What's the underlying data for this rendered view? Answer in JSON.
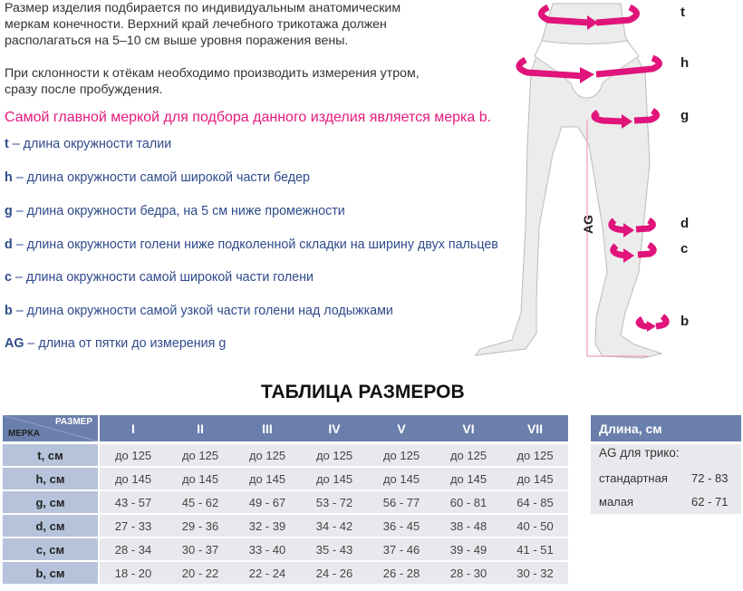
{
  "intro": {
    "p1": "Размер изделия подбирается по индивидуальным анатомическим меркам конечности. Верхний край лечебного трикотажа должен располагаться на 5–10 см выше уровня поражения вены.",
    "p2": "При склонности к отёкам необходимо производить измерения утром, сразу после пробуждения.",
    "highlight": "Самой главной меркой для подбора данного изделия является мерка b."
  },
  "measures": [
    {
      "key": "t",
      "desc": " – длина окружности талии"
    },
    {
      "key": "h",
      "desc": " – длина окружности самой широкой части бедер"
    },
    {
      "key": "g",
      "desc": " – длина окружности бедра, на 5 см ниже промежности"
    },
    {
      "key": "d",
      "desc": " – длина окружности голени ниже подколенной складки на ширину двух пальцев"
    },
    {
      "key": "c",
      "desc": " – длина окружности самой широкой части голени"
    },
    {
      "key": "b",
      "desc": " – длина окружности самой узкой части голени над лодыжками"
    },
    {
      "key": "AG",
      "desc": " – длина от пятки до измерения g"
    }
  ],
  "figure": {
    "labels": [
      "t",
      "h",
      "g",
      "d",
      "c",
      "b"
    ],
    "ag": "AG",
    "accent": "#e0147a"
  },
  "table": {
    "title": "ТАБЛИЦА РАЗМЕРОВ",
    "corner_size": "РАЗМЕР",
    "corner_measure": "МЕРКА",
    "sizes": [
      "I",
      "II",
      "III",
      "IV",
      "V",
      "VI",
      "VII"
    ],
    "rows": [
      {
        "label": "t, см",
        "values": [
          "до 125",
          "до 125",
          "до 125",
          "до 125",
          "до 125",
          "до 125",
          "до 125"
        ]
      },
      {
        "label": "h, см",
        "values": [
          "до 145",
          "до 145",
          "до 145",
          "до 145",
          "до 145",
          "до 145",
          "до 145"
        ]
      },
      {
        "label": "g, см",
        "values": [
          "43 - 57",
          "45 - 62",
          "49 - 67",
          "53 - 72",
          "56 - 77",
          "60 - 81",
          "64 - 85"
        ]
      },
      {
        "label": "d, см",
        "values": [
          "27 - 33",
          "29 - 36",
          "32 - 39",
          "34 - 42",
          "36 - 45",
          "38 - 48",
          "40 - 50"
        ]
      },
      {
        "label": "c, см",
        "values": [
          "28 - 34",
          "30 - 37",
          "33 - 40",
          "35 - 43",
          "37 - 46",
          "39 - 49",
          "41 - 51"
        ]
      },
      {
        "label": "b, см",
        "values": [
          "18 - 20",
          "20 - 22",
          "22 - 24",
          "24 - 26",
          "26 - 28",
          "28 - 30",
          "30 - 32"
        ]
      }
    ]
  },
  "length_table": {
    "header": "Длина, см",
    "subtitle": "AG для трико:",
    "rows": [
      {
        "label": "стандартная",
        "value": "72 - 83"
      },
      {
        "label": "малая",
        "value": "62 - 71"
      }
    ]
  },
  "colors": {
    "header": "#6a7fac",
    "label": "#b6c3db",
    "cell": "#e8e9ec",
    "pink": "#e5197d",
    "blue": "#2f4b8c"
  }
}
